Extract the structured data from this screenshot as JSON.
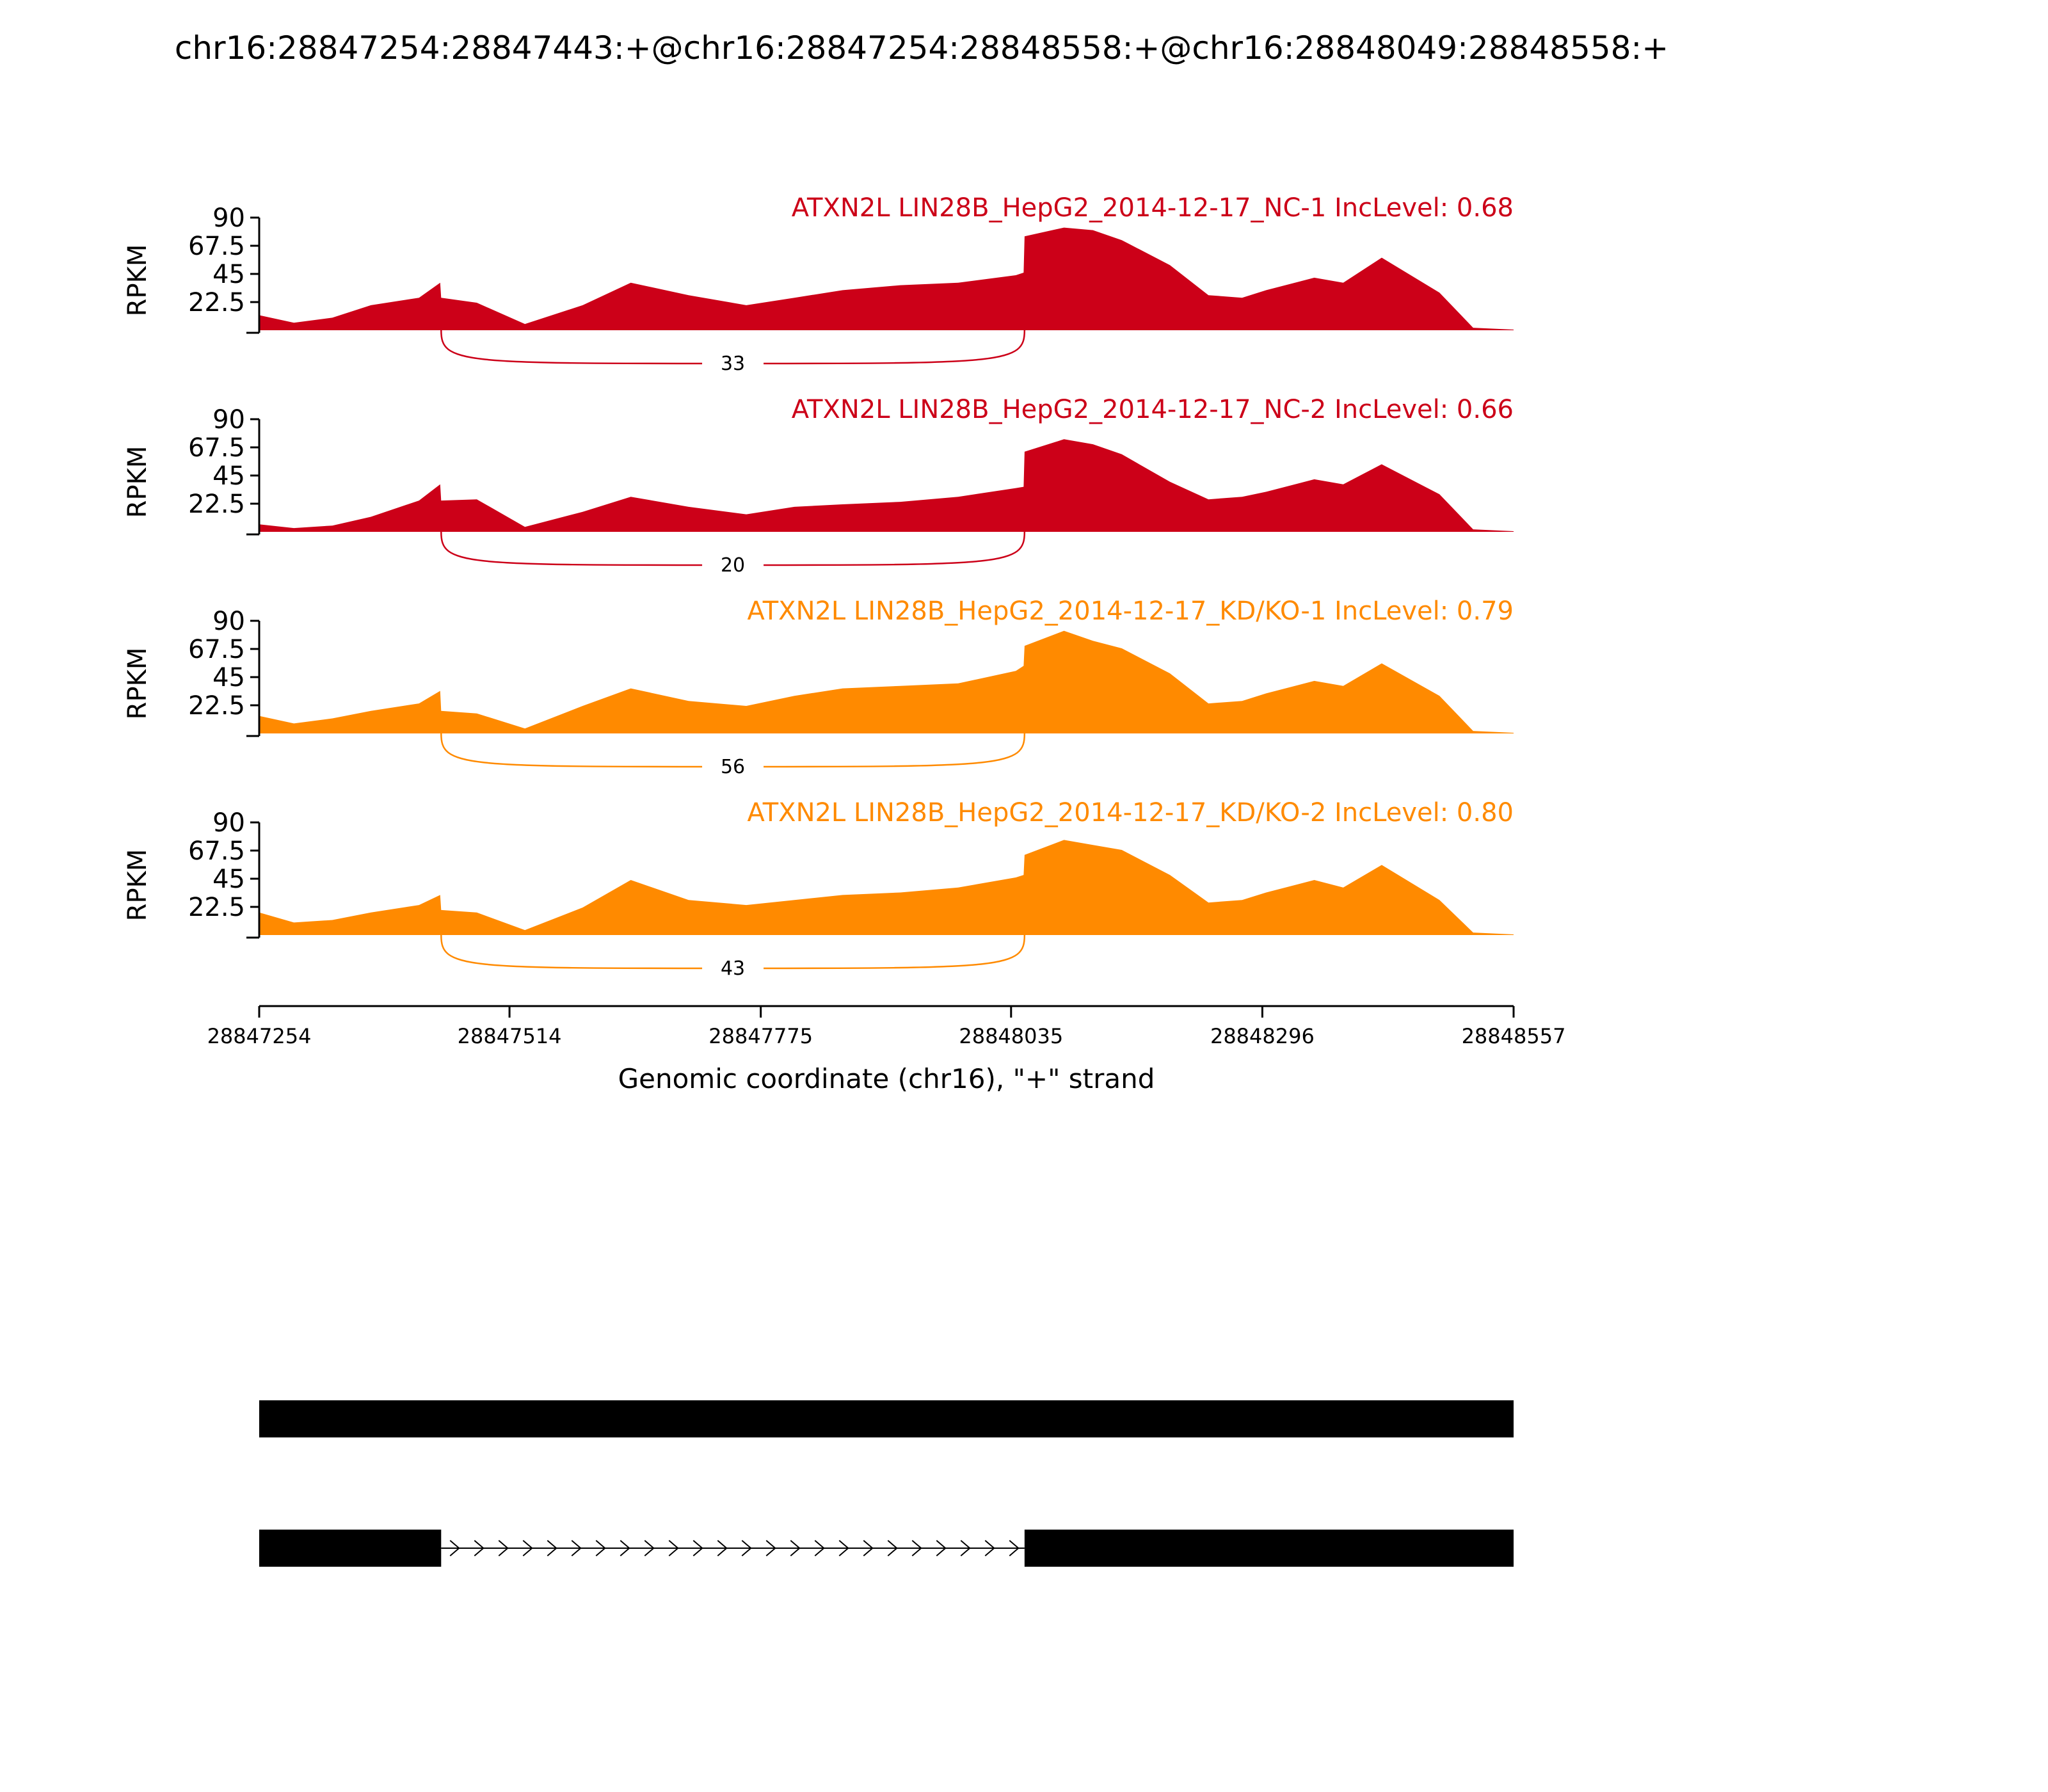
{
  "title": "chr16:28847254:28847443:+@chr16:28847254:28848558:+@chr16:28848049:28848558:+",
  "chart_data": {
    "type": "area",
    "title": "chr16:28847254:28847443:+@chr16:28847254:28848558:+@chr16:28848049:28848558:+",
    "ylabel": "RPKM",
    "xlabel": "Genomic coordinate (chr16), \"+\" strand",
    "xlim": [
      28847254,
      28848557
    ],
    "ylim": [
      0,
      90
    ],
    "y_ticks": [
      "90",
      "67.5",
      "45",
      "22.5"
    ],
    "x_ticks": [
      {
        "value": 28847254,
        "label": "28847254"
      },
      {
        "value": 28847514,
        "label": "28847514"
      },
      {
        "value": 28847775,
        "label": "28847775"
      },
      {
        "value": 28848035,
        "label": "28848035"
      },
      {
        "value": 28848296,
        "label": "28848296"
      },
      {
        "value": 28848557,
        "label": "28848557"
      }
    ],
    "x_samples": [
      28847254,
      28847290,
      28847330,
      28847370,
      28847420,
      28847442,
      28847443,
      28847480,
      28847530,
      28847590,
      28847640,
      28847700,
      28847760,
      28847810,
      28847860,
      28847920,
      28847980,
      28848040,
      28848048,
      28848049,
      28848090,
      28848120,
      28848150,
      28848200,
      28848240,
      28848275,
      28848300,
      28848350,
      28848380,
      28848420,
      28848480,
      28848515,
      28848557
    ],
    "series": [
      {
        "name": "ATXN2L LIN28B_HepG2_2014-12-17_NC-1 IncLevel: 0.68",
        "color": "#cc0018",
        "values": [
          12,
          6,
          10,
          20,
          26,
          38,
          26,
          22,
          5,
          20,
          38,
          28,
          20,
          26,
          32,
          36,
          38,
          44,
          46,
          75,
          82,
          80,
          72,
          52,
          28,
          26,
          32,
          42,
          38,
          58,
          30,
          2,
          0.5
        ],
        "junction": {
          "start": 28847443,
          "end": 28848049,
          "count": "33"
        }
      },
      {
        "name": "ATXN2L LIN28B_HepG2_2014-12-17_NC-2 IncLevel: 0.66",
        "color": "#cc0018",
        "values": [
          6,
          3,
          5,
          12,
          25,
          38,
          25,
          26,
          4,
          16,
          28,
          20,
          14,
          20,
          22,
          24,
          28,
          35,
          36,
          64,
          74,
          70,
          62,
          40,
          26,
          28,
          32,
          42,
          38,
          54,
          30,
          2,
          0.5
        ],
        "junction": {
          "start": 28847443,
          "end": 28848049,
          "count": "20"
        }
      },
      {
        "name": "ATXN2L LIN28B_HepG2_2014-12-17_KD/KO-1 IncLevel: 0.79",
        "color": "#ff8a00",
        "values": [
          14,
          8,
          12,
          18,
          24,
          34,
          18,
          16,
          4,
          22,
          36,
          26,
          22,
          30,
          36,
          38,
          40,
          50,
          54,
          70,
          82,
          74,
          68,
          48,
          24,
          26,
          32,
          42,
          38,
          56,
          30,
          2,
          0.5
        ],
        "junction": {
          "start": 28847443,
          "end": 28848049,
          "count": "56"
        }
      },
      {
        "name": "ATXN2L LIN28B_HepG2_2014-12-17_KD/KO-2 IncLevel: 0.80",
        "color": "#ff8a00",
        "values": [
          18,
          10,
          12,
          18,
          24,
          32,
          20,
          18,
          4,
          22,
          44,
          28,
          24,
          28,
          32,
          34,
          38,
          46,
          48,
          64,
          76,
          72,
          68,
          48,
          26,
          28,
          34,
          44,
          38,
          56,
          28,
          2,
          0.5
        ],
        "junction": {
          "start": 28847443,
          "end": 28848049,
          "count": "43"
        }
      }
    ],
    "isoforms": [
      {
        "exons": [
          [
            28847254,
            28848557
          ]
        ]
      },
      {
        "exons": [
          [
            28847254,
            28847443
          ],
          [
            28848049,
            28848557
          ]
        ]
      }
    ]
  }
}
